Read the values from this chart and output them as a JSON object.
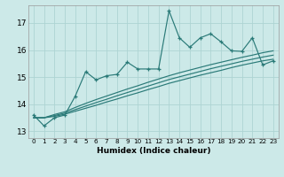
{
  "title": "",
  "xlabel": "Humidex (Indice chaleur)",
  "bg_color": "#cce9e8",
  "grid_color": "#aed4d3",
  "line_color": "#2a7a78",
  "xlim": [
    -0.5,
    23.5
  ],
  "ylim": [
    12.75,
    17.65
  ],
  "xticks": [
    0,
    1,
    2,
    3,
    4,
    5,
    6,
    7,
    8,
    9,
    10,
    11,
    12,
    13,
    14,
    15,
    16,
    17,
    18,
    19,
    20,
    21,
    22,
    23
  ],
  "yticks": [
    13,
    14,
    15,
    16,
    17
  ],
  "main_y": [
    13.6,
    13.2,
    13.5,
    13.6,
    14.3,
    15.2,
    14.9,
    15.05,
    15.1,
    15.55,
    15.3,
    15.3,
    15.3,
    17.45,
    16.45,
    16.1,
    16.45,
    16.6,
    16.3,
    15.97,
    15.95,
    16.45,
    15.45,
    15.6
  ],
  "trend1_y": [
    13.5,
    13.5,
    13.62,
    13.72,
    13.88,
    14.03,
    14.17,
    14.3,
    14.43,
    14.56,
    14.68,
    14.81,
    14.93,
    15.05,
    15.16,
    15.26,
    15.36,
    15.46,
    15.55,
    15.64,
    15.73,
    15.81,
    15.9,
    15.97
  ],
  "trend2_y": [
    13.5,
    13.5,
    13.58,
    13.67,
    13.8,
    13.93,
    14.06,
    14.18,
    14.31,
    14.43,
    14.55,
    14.67,
    14.79,
    14.91,
    15.01,
    15.11,
    15.21,
    15.31,
    15.4,
    15.49,
    15.58,
    15.66,
    15.74,
    15.81
  ],
  "trend3_y": [
    13.5,
    13.5,
    13.55,
    13.63,
    13.74,
    13.85,
    13.96,
    14.08,
    14.19,
    14.31,
    14.42,
    14.54,
    14.65,
    14.77,
    14.87,
    14.97,
    15.07,
    15.16,
    15.25,
    15.35,
    15.44,
    15.52,
    15.6,
    15.66
  ]
}
